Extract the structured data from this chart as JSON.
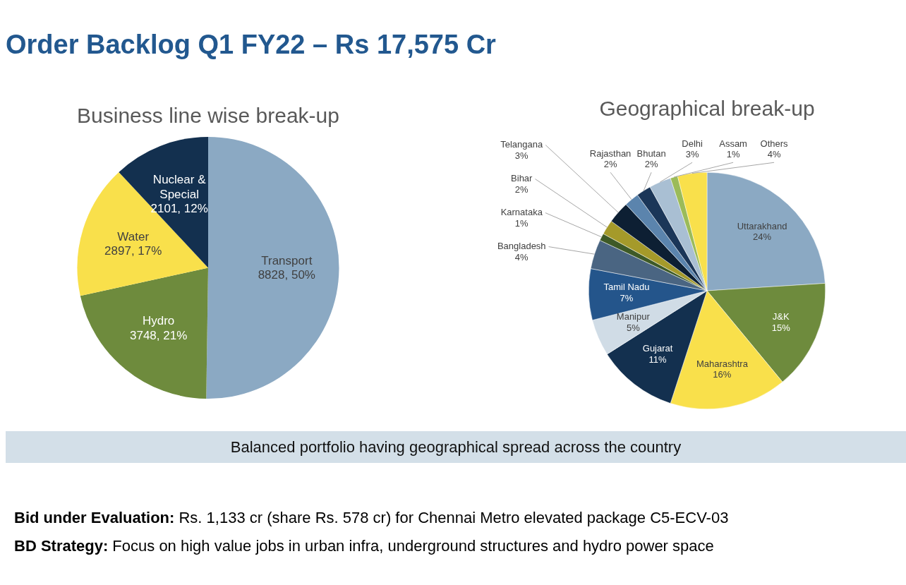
{
  "chart_data": [
    {
      "type": "pie",
      "title": "Business line wise break-up",
      "annotations": [
        "Order Backlog Q1 FY22 – Rs 17,575 Cr"
      ],
      "legend": false,
      "categories": [
        "Transport",
        "Hydro",
        "Water",
        "Nuclear & Special"
      ],
      "values": [
        8828,
        3748,
        2897,
        2101
      ],
      "value_labels": [
        "8828, 50%",
        "3748, 21%",
        "2897, 17%",
        "2101, 12%"
      ],
      "colors": [
        "#8ba9c3",
        "#6e8b3d",
        "#f9e04b",
        "#13304f"
      ]
    },
    {
      "type": "pie",
      "title": "Geographical break-up",
      "annotations": [
        "Balanced portfolio having geographical spread across the country",
        "Bid under Evaluation: Rs. 1,133 cr (share Rs. 578 cr) for Chennai Metro elevated package C5-ECV-03",
        "BD Strategy: Focus on high value jobs in urban infra, underground structures and hydro power space"
      ],
      "legend": false,
      "categories": [
        "Uttarakhand",
        "J&K",
        "Maharashtra",
        "Gujarat",
        "Manipur",
        "Tamil Nadu",
        "Bangladesh",
        "Karnataka",
        "Bihar",
        "Telangana",
        "Rajasthan",
        "Bhutan",
        "Delhi",
        "Assam",
        "Others"
      ],
      "values": [
        24,
        15,
        16,
        11,
        5,
        7,
        4,
        1,
        2,
        3,
        2,
        2,
        3,
        1,
        4
      ],
      "value_labels": [
        "24%",
        "15%",
        "16%",
        "11%",
        "5%",
        "7%",
        "4%",
        "1%",
        "2%",
        "3%",
        "2%",
        "2%",
        "3%",
        "1%",
        "4%"
      ],
      "colors": [
        "#8ba9c3",
        "#6e8b3d",
        "#f9e04b",
        "#13304f",
        "#d0dce6",
        "#24558b",
        "#4a6582",
        "#3e5a27",
        "#a59a2a",
        "#0d1f33",
        "#5b84ad",
        "#1b3658",
        "#a9bfd3",
        "#9bbb59",
        "#f9e04b"
      ]
    }
  ]
}
